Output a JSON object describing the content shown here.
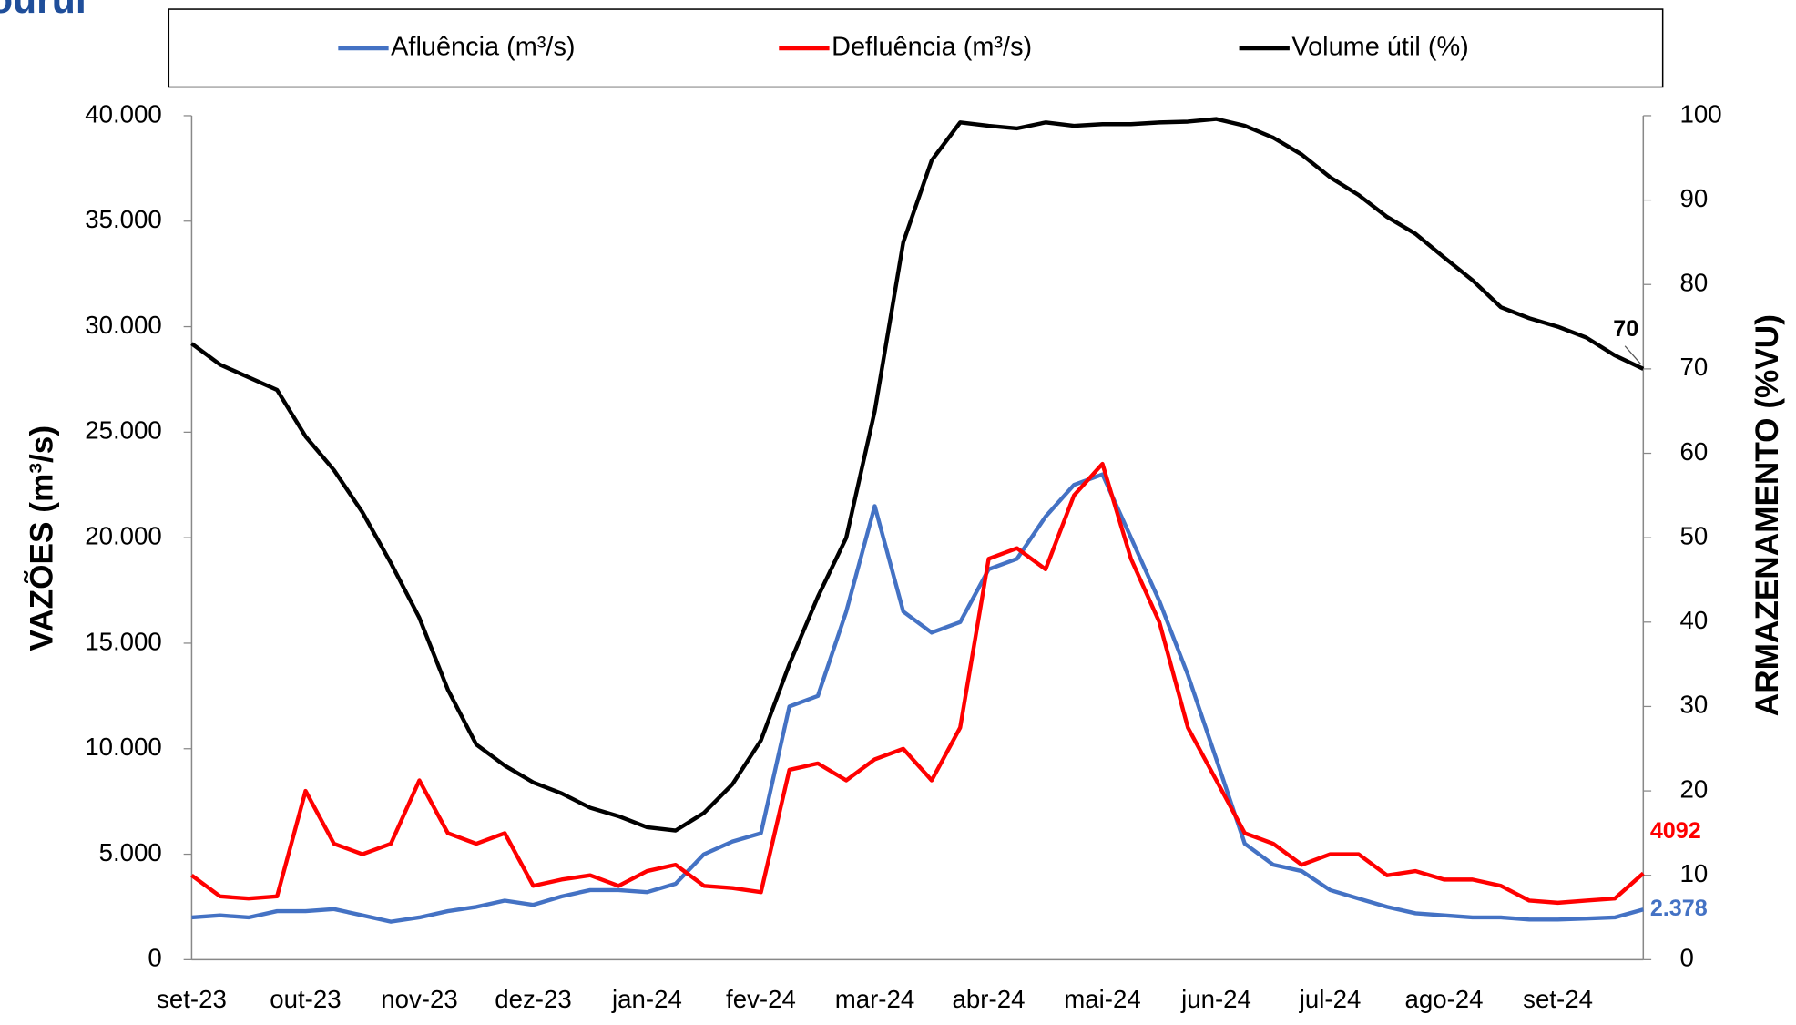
{
  "chart_data": {
    "type": "line",
    "title": "ouruí",
    "y_label": "VAZÕES (m³/s)",
    "y2_label": "ARMAZENAMENTO (%VU)",
    "categories": [
      "set-23",
      null,
      null,
      null,
      "out-23",
      null,
      null,
      null,
      "nov-23",
      null,
      null,
      null,
      "dez-23",
      null,
      null,
      null,
      "jan-24",
      null,
      null,
      null,
      "fev-24",
      null,
      null,
      null,
      "mar-24",
      null,
      null,
      null,
      "abr-24",
      null,
      null,
      null,
      "mai-24",
      null,
      null,
      null,
      "jun-24",
      null,
      null,
      null,
      "jul-24",
      null,
      null,
      null,
      "ago-24",
      null,
      null,
      null,
      "set-24",
      null,
      null,
      null
    ],
    "ylim": [
      0,
      40000
    ],
    "yticks": [
      0,
      {
        "value": 5000,
        "label": "5.000"
      },
      {
        "value": 10000,
        "label": "10.000"
      },
      {
        "value": 15000,
        "label": "15.000"
      },
      {
        "value": 20000,
        "label": "20.000"
      },
      {
        "value": 25000,
        "label": "25.000"
      },
      {
        "value": 30000,
        "label": "30.000"
      },
      {
        "value": 35000,
        "label": "35.000"
      },
      {
        "value": 40000,
        "label": "40.000"
      }
    ],
    "y2lim": [
      0,
      100
    ],
    "y2ticks": [
      0,
      10,
      20,
      30,
      40,
      50,
      60,
      70,
      80,
      90,
      100
    ],
    "grid": false,
    "legend": "top",
    "series": [
      {
        "name": "Afluência (m³/s)",
        "color": "#4472c4",
        "values": [
          2000,
          2100,
          2000,
          2300,
          2300,
          2400,
          2100,
          1800,
          2000,
          2300,
          2500,
          2800,
          2600,
          3000,
          3300,
          3300,
          3200,
          3600,
          5000,
          5600,
          6000,
          12000,
          12500,
          16500,
          21500,
          16500,
          15500,
          16000,
          18500,
          19000,
          21000,
          22500,
          23000,
          20000,
          17000,
          13500,
          9500,
          5500,
          4500,
          4200,
          3300,
          2900,
          2500,
          2200,
          2100,
          2000,
          2000,
          1900,
          1900,
          1950,
          2000,
          2378
        ],
        "value_labels": [
          null,
          null,
          null,
          null,
          null,
          null,
          null,
          null,
          null,
          null,
          null,
          null,
          null,
          null,
          null,
          null,
          null,
          null,
          null,
          null,
          null,
          null,
          null,
          null,
          null,
          null,
          null,
          null,
          null,
          null,
          null,
          null,
          null,
          null,
          null,
          null,
          null,
          null,
          null,
          null,
          null,
          null,
          null,
          null,
          null,
          null,
          null,
          null,
          null,
          null,
          null,
          "2.378"
        ]
      },
      {
        "name": "Defluência (m³/s)",
        "color": "#ff0000",
        "values": [
          4000,
          3000,
          2900,
          3000,
          8000,
          5500,
          5000,
          5500,
          8500,
          6000,
          5500,
          6000,
          3500,
          3800,
          4000,
          3500,
          4200,
          4500,
          3500,
          3400,
          3200,
          9000,
          9300,
          8500,
          9500,
          10000,
          8500,
          11000,
          19000,
          19500,
          18500,
          22000,
          23500,
          19000,
          16000,
          11000,
          8500,
          6000,
          5500,
          4500,
          5000,
          5000,
          4000,
          4200,
          3800,
          3800,
          3500,
          2800,
          2700,
          2800,
          2900,
          4092
        ]
      },
      {
        "name": "Volume útil (%)",
        "color": "#000000",
        "axis": "y2",
        "values": [
          73,
          70.5,
          69,
          67.5,
          62,
          58,
          53,
          47,
          40.5,
          32,
          25.5,
          23,
          21,
          19.7,
          18,
          17,
          15.7,
          15.3,
          17.4,
          20.8,
          26,
          35,
          43,
          50,
          65,
          85,
          94.7,
          99.2,
          98.8,
          98.5,
          99.2,
          98.8,
          99,
          99,
          99.2,
          99.3,
          99.6,
          98.8,
          97.4,
          95.4,
          92.7,
          90.6,
          88,
          86,
          83.2,
          80.5,
          77.3,
          76,
          75,
          73.7,
          71.6,
          70
        ]
      }
    ]
  }
}
